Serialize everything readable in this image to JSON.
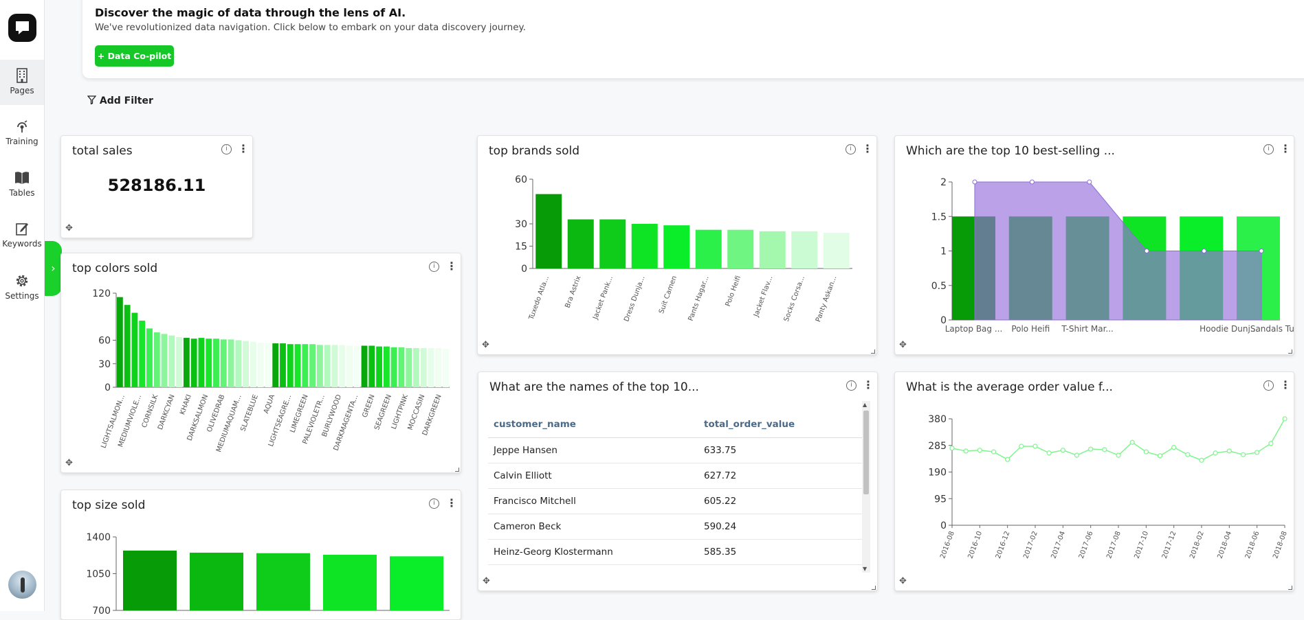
{
  "sidebar": {
    "items": [
      {
        "label": "Pages",
        "icon": "building-icon"
      },
      {
        "label": "Training",
        "icon": "training-icon"
      },
      {
        "label": "Tables",
        "icon": "book-icon"
      },
      {
        "label": "Keywords",
        "icon": "edit-icon"
      },
      {
        "label": "Settings",
        "icon": "gear-icon"
      }
    ]
  },
  "banner": {
    "title": "Discover the magic of data through the lens of AI.",
    "subtitle": "We've revolutionized data navigation. Click below to embark on your data discovery journey.",
    "button": "+ Data Co-pilot"
  },
  "filter": {
    "label": "Add Filter"
  },
  "colors": {
    "accent": "#15c828"
  },
  "cards": {
    "total_sales": {
      "title": "total sales",
      "value": "528186.11"
    },
    "top_colors": {
      "title": "top colors sold"
    },
    "top_brands": {
      "title": "top brands sold"
    },
    "top_products": {
      "title": "Which are the top 10 best-selling ..."
    },
    "top_customers": {
      "title": "What are the names of the top 10..."
    },
    "avg_order": {
      "title": "What is the average order value f..."
    },
    "top_size": {
      "title": "top size sold"
    }
  },
  "table": {
    "headers": [
      "customer_name",
      "total_order_value"
    ],
    "rows": [
      [
        "Jeppe Hansen",
        "633.75"
      ],
      [
        "Calvin Elliott",
        "627.72"
      ],
      [
        "Francisco Mitchell",
        "605.22"
      ],
      [
        "Cameron Beck",
        "590.24"
      ],
      [
        "Heinz-Georg Klostermann",
        "585.35"
      ]
    ]
  },
  "chart_data": [
    {
      "id": "top_brands",
      "type": "bar",
      "ylim": [
        0,
        60
      ],
      "yticks": [
        0,
        15,
        30,
        60
      ],
      "categories": [
        "Tuxedo Atla...",
        "Bra Astrix",
        "Jacket Pank...",
        "Dress Dunja...",
        "Suit Camen",
        "Pants Hagar...",
        "Polo Heifi",
        "Jacket Flav...",
        "Socks Corsa...",
        "Panty Askan..."
      ],
      "values": [
        50,
        33,
        33,
        30,
        29,
        26,
        26,
        25,
        25,
        24
      ]
    },
    {
      "id": "top_colors",
      "type": "bar",
      "ylim": [
        0,
        120
      ],
      "yticks": [
        0,
        30,
        60,
        120
      ],
      "tick_labels": [
        "LIGHTSALMON...",
        "MEDIUMVIOLE...",
        "CORNSILK",
        "DARKCYAN",
        "KHAKI",
        "DARKSALMON",
        "OLIVEDRAB",
        "MEDIUMAQUAM...",
        "SLATEBLUE",
        "AQUA",
        "LIGHTSEAGRE...",
        "LIMEGREEN",
        "PALEVIOLETR...",
        "BURLYWOOD",
        "DARKMAGENTA...",
        "GREEN",
        "SEAGREEN",
        "LIGHTPINK",
        "MOCCASIN",
        "DARKGREEN"
      ],
      "values": [
        115,
        105,
        95,
        85,
        75,
        70,
        68,
        66,
        64,
        63,
        62,
        63,
        62,
        62,
        61,
        61,
        60,
        59,
        58,
        57,
        57,
        56,
        56,
        55,
        55,
        55,
        55,
        54,
        54,
        54,
        54,
        53,
        53,
        53,
        53,
        52,
        52,
        51,
        51,
        50,
        50,
        50,
        50,
        50,
        49
      ]
    },
    {
      "id": "top_products",
      "type": "bar",
      "ylim": [
        0,
        2
      ],
      "yticks": [
        0,
        0.5,
        1,
        1.5,
        2
      ],
      "categories": [
        "Laptop Bag ...",
        "Polo Heifi",
        "T-Shirt Mar...",
        "",
        "Hoodie Dunj...",
        "Sandals Tur..."
      ],
      "values": [
        1.5,
        1.5,
        1.5,
        1.5,
        1.5,
        1.5
      ],
      "area_values": [
        2,
        2,
        2,
        1,
        1,
        1
      ]
    },
    {
      "id": "avg_order",
      "type": "line",
      "ylim": [
        0,
        380
      ],
      "yticks": [
        0,
        95,
        190,
        285,
        380
      ],
      "x_tick_labels": [
        "2016-08",
        "2016-10",
        "2016-12",
        "2017-02",
        "2017-04",
        "2017-06",
        "2017-08",
        "2017-10",
        "2017-12",
        "2018-02",
        "2018-04",
        "2018-06",
        "2018-08"
      ],
      "values": [
        275,
        265,
        268,
        262,
        235,
        282,
        282,
        258,
        268,
        250,
        272,
        270,
        250,
        296,
        262,
        248,
        278,
        252,
        232,
        258,
        265,
        252,
        260,
        292,
        380
      ]
    },
    {
      "id": "top_size",
      "type": "bar",
      "ylim": [
        700,
        1400
      ],
      "yticks": [
        700,
        1050,
        1400
      ],
      "values": [
        1270,
        1250,
        1245,
        1230,
        1215
      ]
    }
  ]
}
